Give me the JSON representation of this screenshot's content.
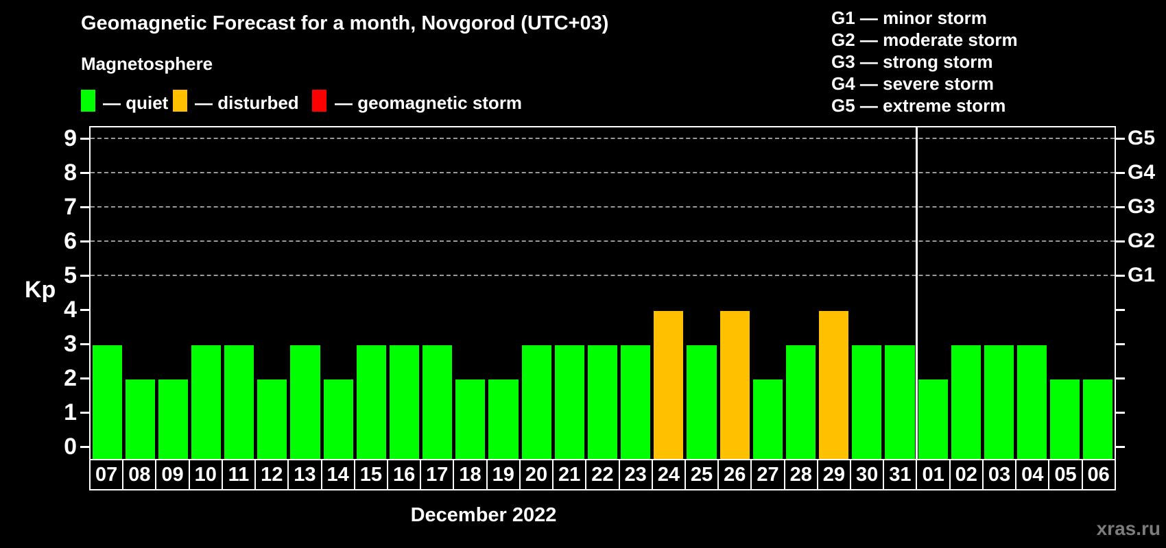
{
  "title": "Geomagnetic Forecast for a month, Novgorod (UTC+03)",
  "subtitle": "Magnetosphere",
  "legend": {
    "items": [
      {
        "name": "quiet",
        "label": "— quiet",
        "color": "#00ff00"
      },
      {
        "name": "disturbed",
        "label": "— disturbed",
        "color": "#ffc000"
      },
      {
        "name": "geomagnetic-storm",
        "label": "— geomagnetic storm",
        "color": "#ff0000"
      }
    ]
  },
  "g_legend": [
    "G1 — minor storm",
    "G2 — moderate storm",
    "G3 — strong storm",
    "G4 — severe storm",
    "G5 — extreme storm"
  ],
  "axes": {
    "y_label": "Kp",
    "y_ticks": [
      "0",
      "1",
      "2",
      "3",
      "4",
      "5",
      "6",
      "7",
      "8",
      "9"
    ],
    "right_g_labels": [
      {
        "kp": 9,
        "label": "G5"
      },
      {
        "kp": 8,
        "label": "G4"
      },
      {
        "kp": 7,
        "label": "G3"
      },
      {
        "kp": 6,
        "label": "G2"
      },
      {
        "kp": 5,
        "label": "G1"
      }
    ],
    "x_label": "December 2022"
  },
  "watermark": "xras.ru",
  "chart_data": {
    "type": "bar",
    "title": "Geomagnetic Forecast for a month, Novgorod (UTC+03)",
    "xlabel": "December 2022",
    "ylabel": "Kp",
    "ylim": [
      0,
      9
    ],
    "grid_levels": [
      5,
      6,
      7,
      8,
      9
    ],
    "legend_position": "top",
    "categories": [
      "07",
      "08",
      "09",
      "10",
      "11",
      "12",
      "13",
      "14",
      "15",
      "16",
      "17",
      "18",
      "19",
      "20",
      "21",
      "22",
      "23",
      "24",
      "25",
      "26",
      "27",
      "28",
      "29",
      "30",
      "31",
      "01",
      "02",
      "03",
      "04",
      "05",
      "06"
    ],
    "values": [
      3,
      2,
      2,
      3,
      3,
      2,
      3,
      2,
      3,
      3,
      3,
      2,
      2,
      3,
      3,
      3,
      3,
      4,
      3,
      4,
      2,
      3,
      4,
      3,
      3,
      2,
      3,
      3,
      3,
      2,
      2
    ],
    "states": [
      "quiet",
      "quiet",
      "quiet",
      "quiet",
      "quiet",
      "quiet",
      "quiet",
      "quiet",
      "quiet",
      "quiet",
      "quiet",
      "quiet",
      "quiet",
      "quiet",
      "quiet",
      "quiet",
      "quiet",
      "disturbed",
      "quiet",
      "disturbed",
      "quiet",
      "quiet",
      "disturbed",
      "quiet",
      "quiet",
      "quiet",
      "quiet",
      "quiet",
      "quiet",
      "quiet",
      "quiet"
    ],
    "state_colors": {
      "quiet": "#00ff00",
      "disturbed": "#ffc000",
      "storm": "#ff0000"
    },
    "month_separator_after_index": 24
  }
}
